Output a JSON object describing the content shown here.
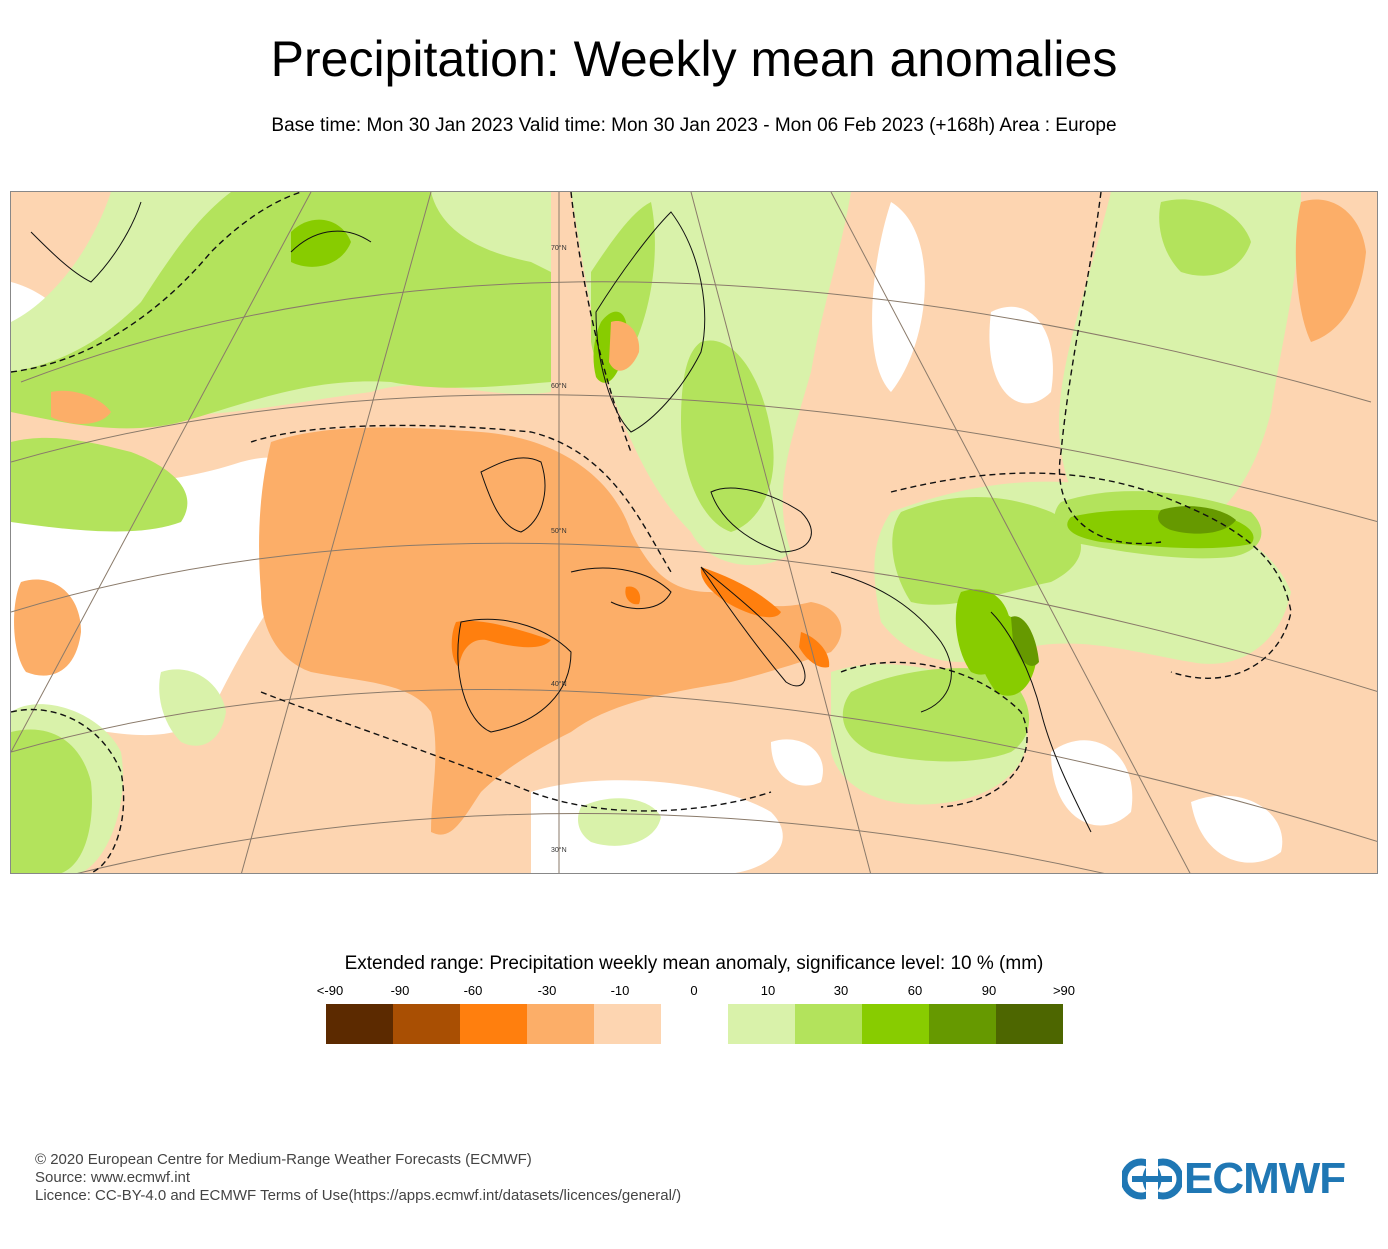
{
  "header": {
    "title": "Precipitation: Weekly mean anomalies",
    "subtitle": "Base time: Mon 30 Jan 2023 Valid time: Mon 30 Jan 2023 - Mon 06 Feb 2023 (+168h) Area : Europe"
  },
  "map": {
    "area": "Europe",
    "latitude_labels": [
      "70°N",
      "60°N",
      "50°N",
      "40°N",
      "30°N"
    ]
  },
  "legend": {
    "title": "Extended range: Precipitation weekly mean anomaly, significance level: 10 % (mm)",
    "ticks": [
      "<-90",
      "-90",
      "-60",
      "-30",
      "-10",
      "0",
      "10",
      "30",
      "60",
      "90",
      ">90"
    ],
    "colors": [
      "#5c2a00",
      "#a94f03",
      "#ff7f0e",
      "#fcae68",
      "#fdd5b1",
      "#ffffff",
      "#d9f2aa",
      "#b3e35c",
      "#88cc00",
      "#669900",
      "#4d6600"
    ]
  },
  "footer": {
    "copyright": "© 2020 European Centre for Medium-Range Weather Forecasts (ECMWF)",
    "source": "Source: www.ecmwf.int",
    "licence": "Licence: CC-BY-4.0 and ECMWF Terms of Use(https://apps.ecmwf.int/datasets/licences/general/)"
  },
  "logo": {
    "text": "ECMWF",
    "color": "#1f77b4"
  }
}
